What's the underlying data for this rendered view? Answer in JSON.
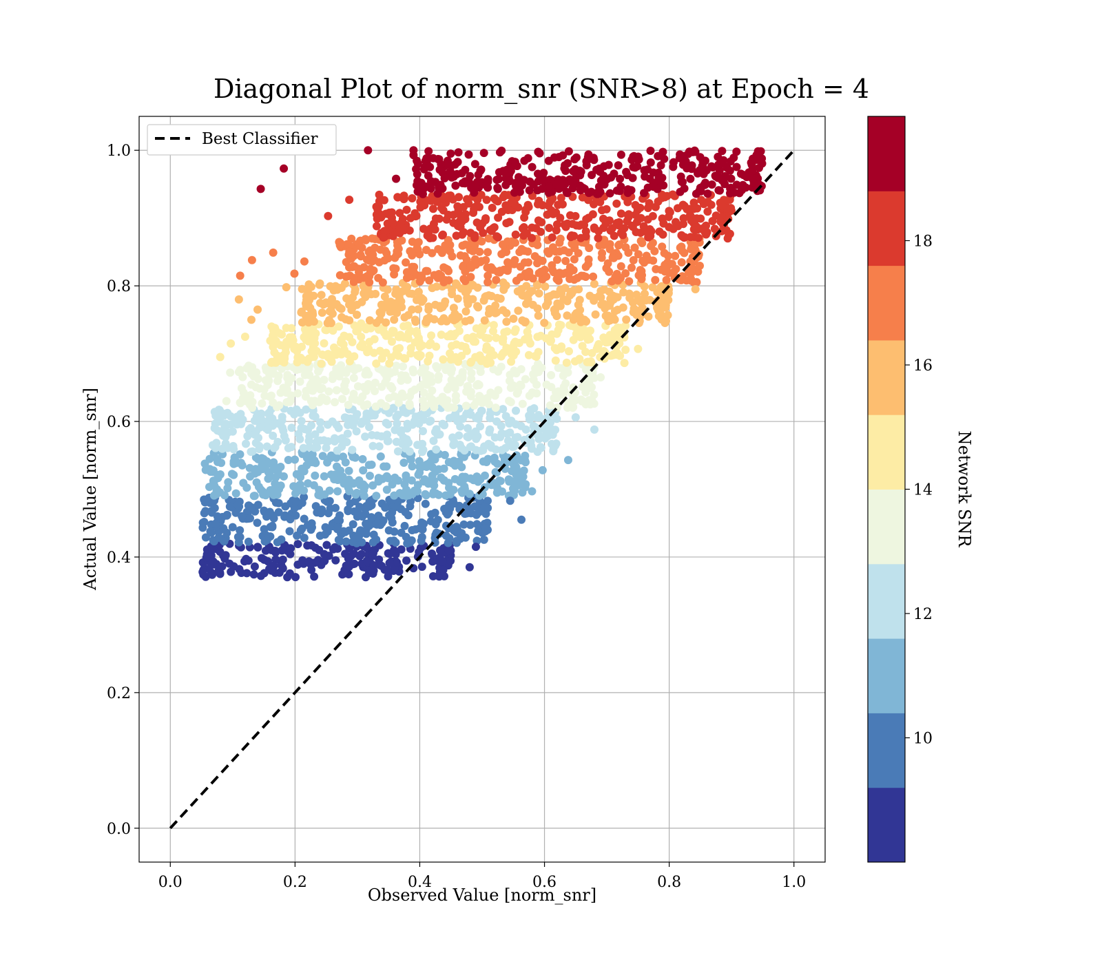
{
  "chart_data": {
    "type": "scatter",
    "title": "Diagonal Plot of norm_snr (SNR>8) at Epoch = 4",
    "xlabel": "Observed Value [norm_snr]",
    "ylabel": "Actual Value [norm_snr]",
    "xlim": [
      -0.05,
      1.05
    ],
    "ylim": [
      -0.05,
      1.05
    ],
    "xticks": [
      "0.0",
      "0.2",
      "0.4",
      "0.6",
      "0.8",
      "1.0"
    ],
    "yticks": [
      "0.0",
      "0.2",
      "0.4",
      "0.6",
      "0.8",
      "1.0"
    ],
    "grid": true,
    "legend": {
      "location": "upper-left",
      "entries": [
        "Best Classifier"
      ]
    },
    "reference_line": {
      "name": "Best Classifier",
      "style": "dashed",
      "color": "#000000",
      "x": [
        0,
        1
      ],
      "y": [
        0,
        1
      ]
    },
    "colorbar": {
      "label": "Network SNR",
      "range": [
        8,
        20
      ],
      "ticks": [
        "10",
        "12",
        "14",
        "16",
        "18"
      ],
      "tick_values": [
        10,
        12,
        14,
        16,
        18
      ],
      "levels": [
        {
          "snr_min": 8.0,
          "snr_max": 9.2,
          "color": "#313695"
        },
        {
          "snr_min": 9.2,
          "snr_max": 10.4,
          "color": "#4a7bb7"
        },
        {
          "snr_min": 10.4,
          "snr_max": 11.6,
          "color": "#80b6d6"
        },
        {
          "snr_min": 11.6,
          "snr_max": 12.8,
          "color": "#bfe1ec"
        },
        {
          "snr_min": 12.8,
          "snr_max": 14.0,
          "color": "#eef6e0"
        },
        {
          "snr_min": 14.0,
          "snr_max": 15.2,
          "color": "#fdeca5"
        },
        {
          "snr_min": 15.2,
          "snr_max": 16.4,
          "color": "#fdbe70"
        },
        {
          "snr_min": 16.4,
          "snr_max": 17.6,
          "color": "#f67f4b"
        },
        {
          "snr_min": 17.6,
          "snr_max": 18.8,
          "color": "#db3a2e"
        },
        {
          "snr_min": 18.8,
          "snr_max": 20.0,
          "color": "#a50026"
        }
      ]
    },
    "bands": [
      {
        "y_min": 0.37,
        "y_max": 0.42,
        "x_min": 0.08,
        "x_max": 0.43,
        "color": "#313695"
      },
      {
        "y_min": 0.42,
        "y_max": 0.49,
        "x_min": 0.08,
        "x_max": 0.49,
        "color": "#4a7bb7"
      },
      {
        "y_min": 0.49,
        "y_max": 0.555,
        "x_min": 0.085,
        "x_max": 0.55,
        "color": "#80b6d6"
      },
      {
        "y_min": 0.555,
        "y_max": 0.62,
        "x_min": 0.1,
        "x_max": 0.6,
        "color": "#bfe1ec"
      },
      {
        "y_min": 0.62,
        "y_max": 0.685,
        "x_min": 0.14,
        "x_max": 0.66,
        "color": "#eef6e0"
      },
      {
        "y_min": 0.685,
        "y_max": 0.745,
        "x_min": 0.19,
        "x_max": 0.71,
        "color": "#fdeca5"
      },
      {
        "y_min": 0.745,
        "y_max": 0.805,
        "x_min": 0.24,
        "x_max": 0.78,
        "color": "#fdbe70"
      },
      {
        "y_min": 0.805,
        "y_max": 0.87,
        "x_min": 0.3,
        "x_max": 0.83,
        "color": "#f67f4b"
      },
      {
        "y_min": 0.87,
        "y_max": 0.935,
        "x_min": 0.36,
        "x_max": 0.88,
        "color": "#db3a2e"
      },
      {
        "y_min": 0.935,
        "y_max": 1.0,
        "x_min": 0.42,
        "x_max": 0.93,
        "color": "#a50026"
      }
    ],
    "outliers": [
      {
        "x": 0.145,
        "y": 0.943,
        "color": "#a50026"
      },
      {
        "x": 0.182,
        "y": 0.973,
        "color": "#a50026"
      },
      {
        "x": 0.317,
        "y": 1.0,
        "color": "#a50026"
      },
      {
        "x": 0.39,
        "y": 1.0,
        "color": "#a50026"
      },
      {
        "x": 0.362,
        "y": 0.958,
        "color": "#a50026"
      },
      {
        "x": 0.253,
        "y": 0.903,
        "color": "#db3a2e"
      },
      {
        "x": 0.287,
        "y": 0.927,
        "color": "#db3a2e"
      },
      {
        "x": 0.331,
        "y": 0.888,
        "color": "#db3a2e"
      },
      {
        "x": 0.112,
        "y": 0.815,
        "color": "#f67f4b"
      },
      {
        "x": 0.131,
        "y": 0.838,
        "color": "#f67f4b"
      },
      {
        "x": 0.165,
        "y": 0.849,
        "color": "#f67f4b"
      },
      {
        "x": 0.199,
        "y": 0.818,
        "color": "#f67f4b"
      },
      {
        "x": 0.215,
        "y": 0.836,
        "color": "#f67f4b"
      },
      {
        "x": 0.11,
        "y": 0.78,
        "color": "#fdbe70"
      },
      {
        "x": 0.14,
        "y": 0.765,
        "color": "#fdbe70"
      },
      {
        "x": 0.186,
        "y": 0.798,
        "color": "#fdbe70"
      },
      {
        "x": 0.13,
        "y": 0.75,
        "color": "#fdbe70"
      },
      {
        "x": 0.842,
        "y": 0.795,
        "color": "#fdbe70"
      },
      {
        "x": 0.08,
        "y": 0.695,
        "color": "#fdeca5"
      },
      {
        "x": 0.097,
        "y": 0.715,
        "color": "#fdeca5"
      },
      {
        "x": 0.12,
        "y": 0.725,
        "color": "#fdeca5"
      },
      {
        "x": 0.175,
        "y": 0.73,
        "color": "#fdeca5"
      },
      {
        "x": 0.75,
        "y": 0.707,
        "color": "#fdeca5"
      },
      {
        "x": 0.096,
        "y": 0.672,
        "color": "#eef6e0"
      },
      {
        "x": 0.09,
        "y": 0.63,
        "color": "#eef6e0"
      },
      {
        "x": 0.69,
        "y": 0.665,
        "color": "#eef6e0"
      },
      {
        "x": 0.068,
        "y": 0.565,
        "color": "#bfe1ec"
      },
      {
        "x": 0.08,
        "y": 0.608,
        "color": "#bfe1ec"
      },
      {
        "x": 0.68,
        "y": 0.588,
        "color": "#bfe1ec"
      },
      {
        "x": 0.65,
        "y": 0.606,
        "color": "#bfe1ec"
      },
      {
        "x": 0.638,
        "y": 0.543,
        "color": "#80b6d6"
      },
      {
        "x": 0.597,
        "y": 0.528,
        "color": "#80b6d6"
      },
      {
        "x": 0.58,
        "y": 0.497,
        "color": "#80b6d6"
      },
      {
        "x": 0.563,
        "y": 0.455,
        "color": "#4a7bb7"
      },
      {
        "x": 0.545,
        "y": 0.483,
        "color": "#4a7bb7"
      },
      {
        "x": 0.48,
        "y": 0.385,
        "color": "#313695"
      },
      {
        "x": 0.43,
        "y": 0.372,
        "color": "#313695"
      },
      {
        "x": 0.49,
        "y": 0.415,
        "color": "#313695"
      }
    ]
  }
}
